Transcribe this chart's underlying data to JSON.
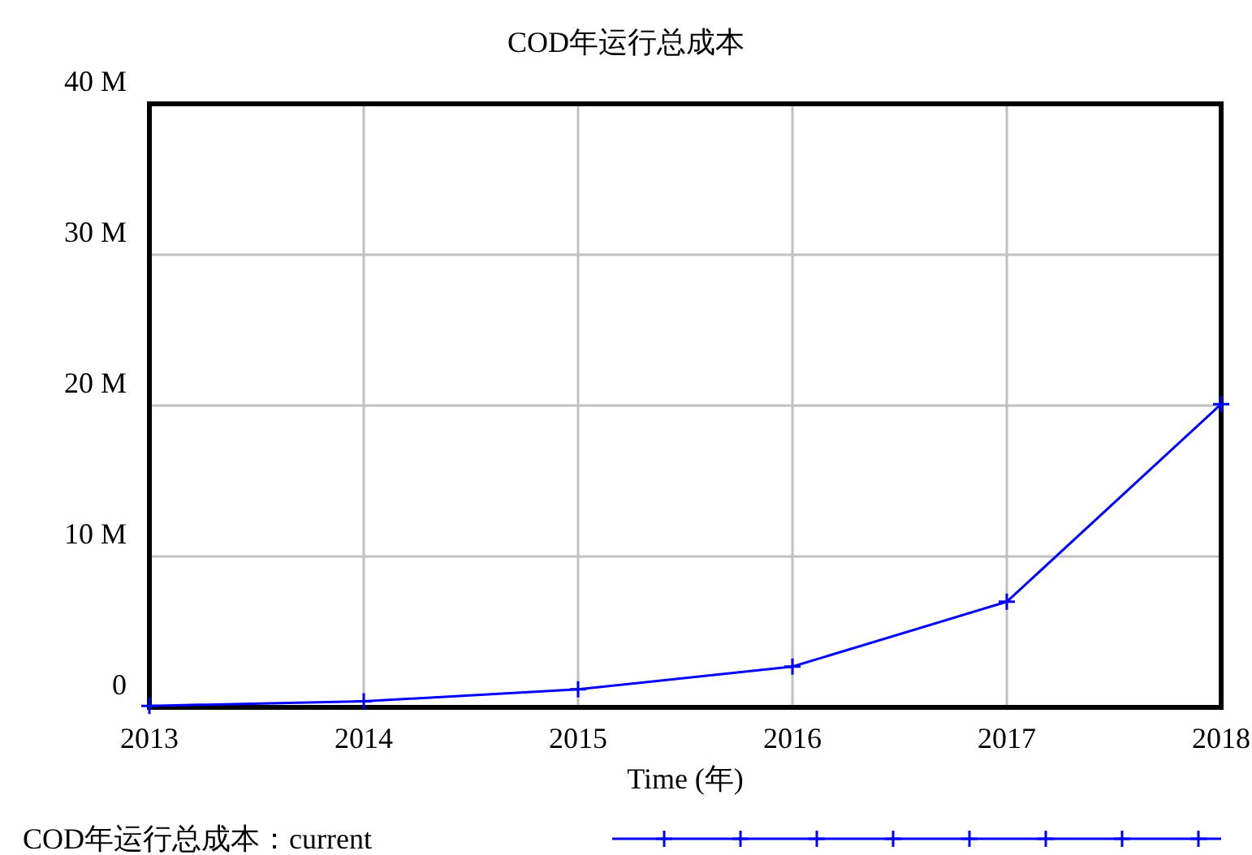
{
  "chart_data": {
    "type": "line",
    "title": "COD年运行总成本",
    "xlabel": "Time (年)",
    "x": [
      2013,
      2014,
      2015,
      2016,
      2017,
      2018
    ],
    "series": [
      {
        "name": "COD年运行总成本：current",
        "color": "#0000ff",
        "values": [
          0.1,
          0.4,
          1.2,
          2.7,
          7.0,
          20.1
        ]
      }
    ],
    "xlim": [
      2013,
      2018
    ],
    "xticks": [
      2013,
      2014,
      2015,
      2016,
      2017,
      2018
    ],
    "ylim": [
      0,
      40
    ],
    "yticks": [
      {
        "value": 0,
        "label": "0"
      },
      {
        "value": 10,
        "label": "10 M"
      },
      {
        "value": 20,
        "label": "20 M"
      },
      {
        "value": 30,
        "label": "30 M"
      },
      {
        "value": 40,
        "label": "40 M"
      }
    ],
    "grid": true,
    "legend": "bottom",
    "marker": "cross",
    "line_style": "solid"
  }
}
